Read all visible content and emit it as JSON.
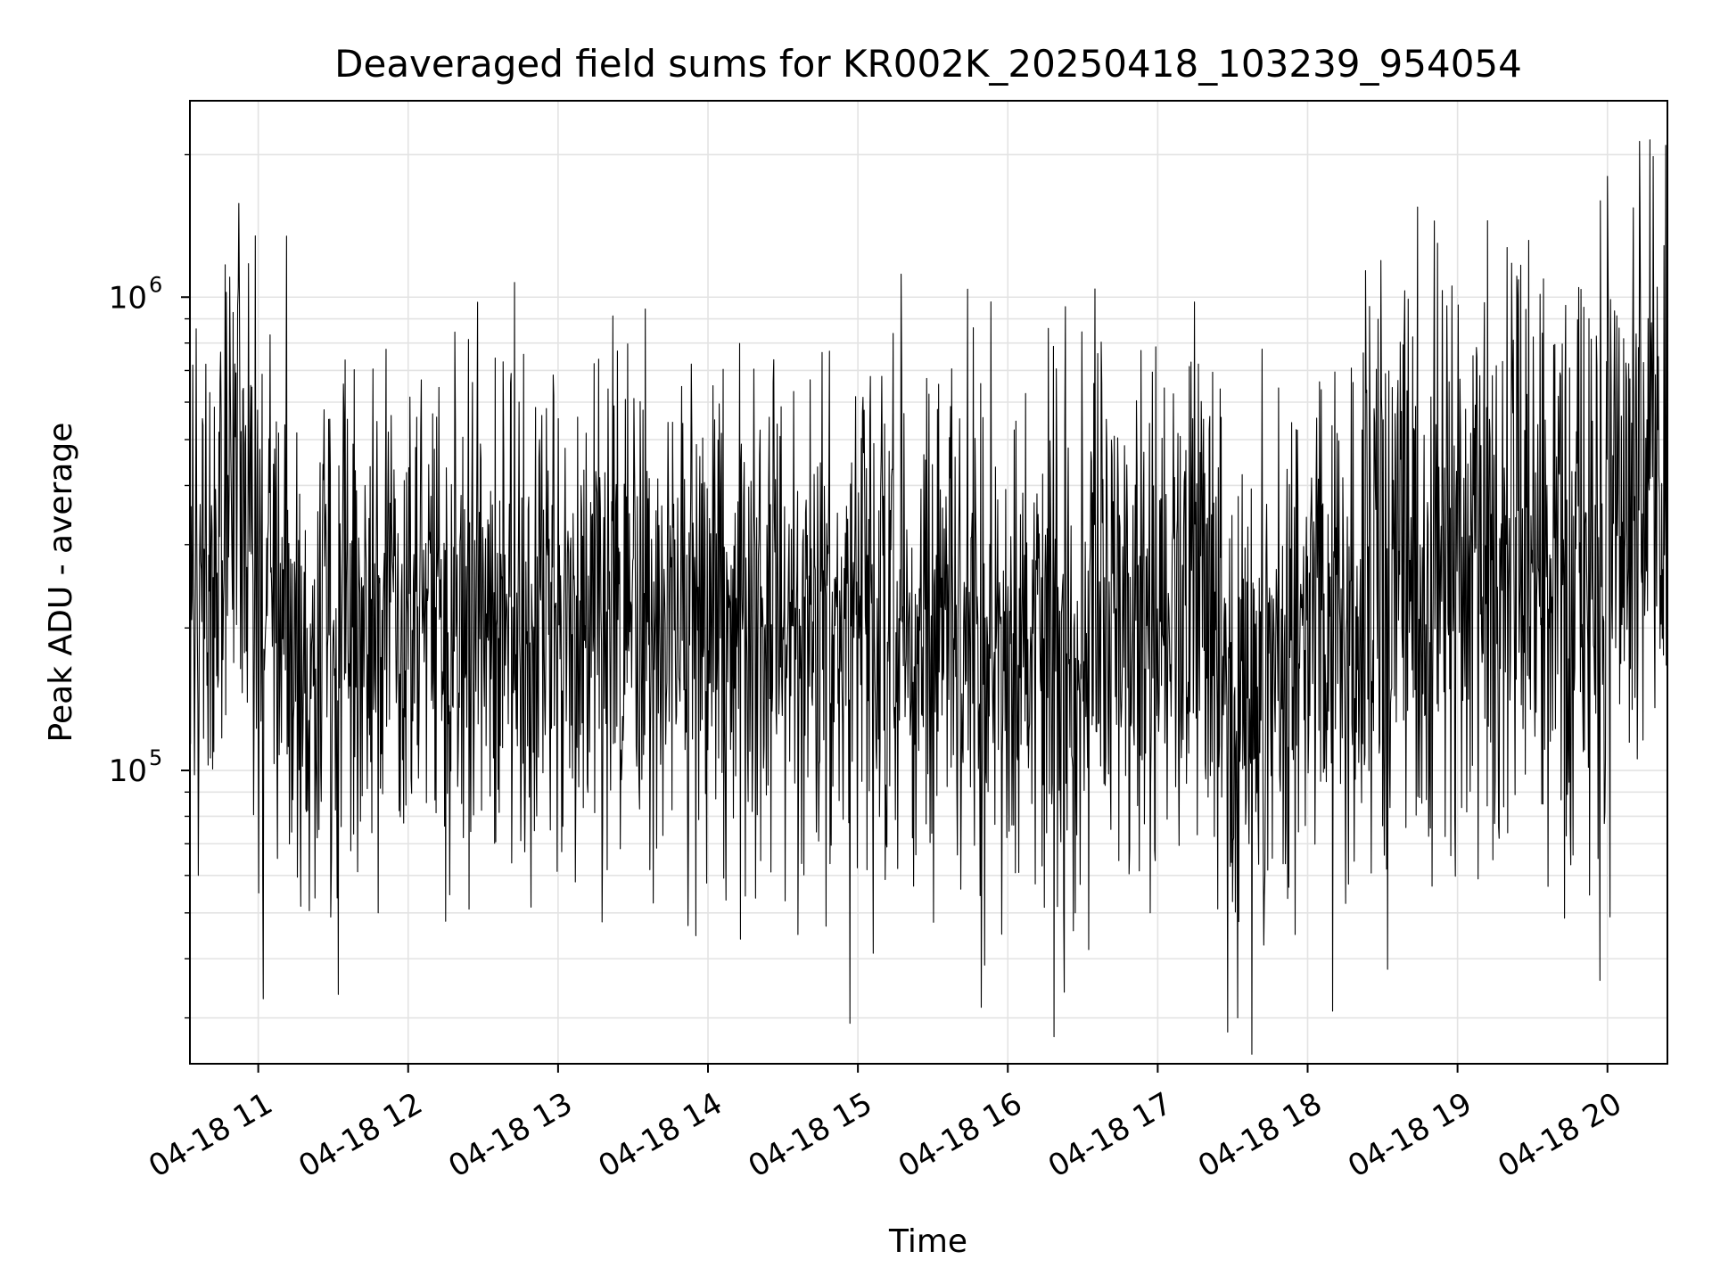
{
  "chart_data": {
    "type": "line",
    "title": "Deaveraged field sums for KR002K_20250418_103239_954054",
    "xlabel": "Time",
    "ylabel": "Peak ADU - average",
    "y_scale": "log",
    "ylim": [
      24000,
      2600000
    ],
    "xlim": [
      "2025-04-18 10:32:39",
      "2025-04-18 20:24:00"
    ],
    "x_ticks": [
      {
        "t": "2025-04-18 11:00",
        "label": "04-18 11"
      },
      {
        "t": "2025-04-18 12:00",
        "label": "04-18 12"
      },
      {
        "t": "2025-04-18 13:00",
        "label": "04-18 13"
      },
      {
        "t": "2025-04-18 14:00",
        "label": "04-18 14"
      },
      {
        "t": "2025-04-18 15:00",
        "label": "04-18 15"
      },
      {
        "t": "2025-04-18 16:00",
        "label": "04-18 16"
      },
      {
        "t": "2025-04-18 17:00",
        "label": "04-18 17"
      },
      {
        "t": "2025-04-18 18:00",
        "label": "04-18 18"
      },
      {
        "t": "2025-04-18 19:00",
        "label": "04-18 19"
      },
      {
        "t": "2025-04-18 20:00",
        "label": "04-18 20"
      }
    ],
    "y_ticks": [
      {
        "value": 100000,
        "base": "10",
        "exp": "5"
      },
      {
        "value": 1000000,
        "base": "10",
        "exp": "6"
      }
    ],
    "grid": true,
    "line_color": "#000000",
    "series": [
      {
        "x": [
          "2025-04-18 10:35",
          "2025-04-18 10:45",
          "2025-04-18 10:50",
          "2025-04-18 10:55",
          "2025-04-18 11:00",
          "2025-04-18 11:15",
          "2025-04-18 11:30",
          "2025-04-18 12:00",
          "2025-04-18 12:30",
          "2025-04-18 13:00",
          "2025-04-18 13:30",
          "2025-04-18 14:00",
          "2025-04-18 14:30",
          "2025-04-18 15:00",
          "2025-04-18 15:30",
          "2025-04-18 16:00",
          "2025-04-18 16:30",
          "2025-04-18 17:00",
          "2025-04-18 17:15",
          "2025-04-18 17:30",
          "2025-04-18 17:45",
          "2025-04-18 18:00",
          "2025-04-18 18:15",
          "2025-04-18 18:30",
          "2025-04-18 18:45",
          "2025-04-18 19:00",
          "2025-04-18 19:15",
          "2025-04-18 19:30",
          "2025-04-18 19:45",
          "2025-04-18 20:00",
          "2025-04-18 20:10",
          "2025-04-18 20:20"
        ],
        "median": [
          220000,
          260000,
          500000,
          350000,
          210000,
          200000,
          200000,
          200000,
          200000,
          210000,
          210000,
          200000,
          220000,
          200000,
          210000,
          190000,
          190000,
          220000,
          200000,
          120000,
          140000,
          200000,
          220000,
          260000,
          290000,
          280000,
          270000,
          260000,
          250000,
          330000,
          450000,
          470000
        ],
        "spread": [
          0.28,
          0.28,
          0.3,
          0.3,
          0.28,
          0.28,
          0.28,
          0.28,
          0.28,
          0.28,
          0.28,
          0.28,
          0.28,
          0.28,
          0.28,
          0.28,
          0.28,
          0.28,
          0.3,
          0.3,
          0.28,
          0.28,
          0.3,
          0.32,
          0.34,
          0.34,
          0.34,
          0.32,
          0.32,
          0.33,
          0.3,
          0.3
        ]
      }
    ],
    "spikes": [
      {
        "t": "2025-04-18 10:52",
        "value": 1050000
      },
      {
        "t": "2025-04-18 10:36",
        "value": 60000
      },
      {
        "t": "2025-04-18 11:29",
        "value": 49000
      },
      {
        "t": "2025-04-18 11:48",
        "value": 50000
      },
      {
        "t": "2025-04-18 12:15",
        "value": 48000
      },
      {
        "t": "2025-04-18 12:38",
        "value": 730000
      },
      {
        "t": "2025-04-18 13:20",
        "value": 640000
      },
      {
        "t": "2025-04-18 13:52",
        "value": 47000
      },
      {
        "t": "2025-04-18 14:13",
        "value": 44000
      },
      {
        "t": "2025-04-18 14:02",
        "value": 650000
      },
      {
        "t": "2025-04-18 14:36",
        "value": 45000
      },
      {
        "t": "2025-04-18 15:05",
        "value": 680000
      },
      {
        "t": "2025-04-18 16:27",
        "value": 50000
      },
      {
        "t": "2025-04-18 16:36",
        "value": 760000
      },
      {
        "t": "2025-04-18 16:57",
        "value": 50000
      },
      {
        "t": "2025-04-18 17:25",
        "value": 640000
      },
      {
        "t": "2025-04-18 17:28",
        "value": 28000
      },
      {
        "t": "2025-04-18 17:32",
        "value": 30000
      },
      {
        "t": "2025-04-18 17:55",
        "value": 45000
      },
      {
        "t": "2025-04-18 18:10",
        "value": 31000
      },
      {
        "t": "2025-04-18 18:32",
        "value": 38000
      },
      {
        "t": "2025-04-18 18:44",
        "value": 1550000
      },
      {
        "t": "2025-04-18 18:52",
        "value": 1300000
      },
      {
        "t": "2025-04-18 19:12",
        "value": 1450000
      },
      {
        "t": "2025-04-18 19:57",
        "value": 36000
      },
      {
        "t": "2025-04-18 20:00",
        "value": 1800000
      },
      {
        "t": "2025-04-18 20:13",
        "value": 1600000
      },
      {
        "t": "2025-04-18 20:17",
        "value": 2150000
      }
    ]
  }
}
